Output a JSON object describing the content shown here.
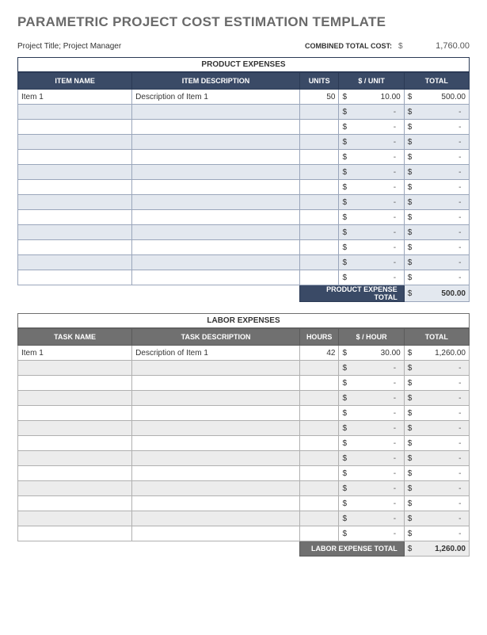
{
  "page_title": "PARAMETRIC PROJECT COST ESTIMATION TEMPLATE",
  "subtitle": "Project Title; Project Manager",
  "combined_label": "COMBINED TOTAL COST:",
  "currency": "$",
  "combined_total": "1,760.00",
  "product": {
    "section_title": "PRODUCT EXPENSES",
    "headers": {
      "name": "ITEM NAME",
      "desc": "ITEM DESCRIPTION",
      "units": "UNITS",
      "price": "$ / UNIT",
      "total": "TOTAL"
    },
    "rows": [
      {
        "name": "Item 1",
        "desc": "Description of Item 1",
        "units": "50",
        "price": "10.00",
        "total": "500.00"
      },
      {
        "name": "",
        "desc": "",
        "units": "",
        "price": "-",
        "total": "-"
      },
      {
        "name": "",
        "desc": "",
        "units": "",
        "price": "-",
        "total": "-"
      },
      {
        "name": "",
        "desc": "",
        "units": "",
        "price": "-",
        "total": "-"
      },
      {
        "name": "",
        "desc": "",
        "units": "",
        "price": "-",
        "total": "-"
      },
      {
        "name": "",
        "desc": "",
        "units": "",
        "price": "-",
        "total": "-"
      },
      {
        "name": "",
        "desc": "",
        "units": "",
        "price": "-",
        "total": "-"
      },
      {
        "name": "",
        "desc": "",
        "units": "",
        "price": "-",
        "total": "-"
      },
      {
        "name": "",
        "desc": "",
        "units": "",
        "price": "-",
        "total": "-"
      },
      {
        "name": "",
        "desc": "",
        "units": "",
        "price": "-",
        "total": "-"
      },
      {
        "name": "",
        "desc": "",
        "units": "",
        "price": "-",
        "total": "-"
      },
      {
        "name": "",
        "desc": "",
        "units": "",
        "price": "-",
        "total": "-"
      },
      {
        "name": "",
        "desc": "",
        "units": "",
        "price": "-",
        "total": "-"
      }
    ],
    "footer_label": "PRODUCT EXPENSE TOTAL",
    "footer_total": "500.00"
  },
  "labor": {
    "section_title": "LABOR EXPENSES",
    "headers": {
      "name": "TASK NAME",
      "desc": "TASK DESCRIPTION",
      "units": "HOURS",
      "price": "$ / HOUR",
      "total": "TOTAL"
    },
    "rows": [
      {
        "name": "Item 1",
        "desc": "Description of Item 1",
        "units": "42",
        "price": "30.00",
        "total": "1,260.00"
      },
      {
        "name": "",
        "desc": "",
        "units": "",
        "price": "-",
        "total": "-"
      },
      {
        "name": "",
        "desc": "",
        "units": "",
        "price": "-",
        "total": "-"
      },
      {
        "name": "",
        "desc": "",
        "units": "",
        "price": "-",
        "total": "-"
      },
      {
        "name": "",
        "desc": "",
        "units": "",
        "price": "-",
        "total": "-"
      },
      {
        "name": "",
        "desc": "",
        "units": "",
        "price": "-",
        "total": "-"
      },
      {
        "name": "",
        "desc": "",
        "units": "",
        "price": "-",
        "total": "-"
      },
      {
        "name": "",
        "desc": "",
        "units": "",
        "price": "-",
        "total": "-"
      },
      {
        "name": "",
        "desc": "",
        "units": "",
        "price": "-",
        "total": "-"
      },
      {
        "name": "",
        "desc": "",
        "units": "",
        "price": "-",
        "total": "-"
      },
      {
        "name": "",
        "desc": "",
        "units": "",
        "price": "-",
        "total": "-"
      },
      {
        "name": "",
        "desc": "",
        "units": "",
        "price": "-",
        "total": "-"
      },
      {
        "name": "",
        "desc": "",
        "units": "",
        "price": "-",
        "total": "-"
      }
    ],
    "footer_label": "LABOR EXPENSE TOTAL",
    "footer_total": "1,260.00"
  },
  "style": {
    "blue_header_bg": "#3a4a66",
    "blue_alt_bg": "#e3e8ef",
    "gray_header_bg": "#707070",
    "gray_alt_bg": "#ececec",
    "title_color": "#6a6a6a"
  }
}
